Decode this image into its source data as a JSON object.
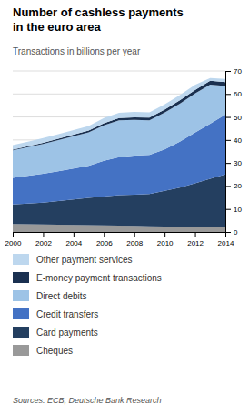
{
  "chart_data": {
    "type": "area",
    "stacked": true,
    "title": "Number of cashless payments\nin the euro area",
    "subtitle": "Transactions in billions per year",
    "source": "Sources: ECB, Deutsche Bank Research",
    "x": [
      2000,
      2001,
      2002,
      2003,
      2004,
      2005,
      2006,
      2007,
      2008,
      2009,
      2010,
      2011,
      2012,
      2013,
      2014
    ],
    "series": [
      {
        "name": "Cheques",
        "color": "#999999",
        "values": [
          3.5,
          3.4,
          3.3,
          3.2,
          3.1,
          3.0,
          2.9,
          2.8,
          2.7,
          2.5,
          2.4,
          2.3,
          2.2,
          2.1,
          2.0
        ]
      },
      {
        "name": "Card payments",
        "color": "#243f60",
        "values": [
          8.5,
          9.0,
          9.5,
          10.2,
          11.0,
          11.8,
          12.5,
          13.2,
          13.5,
          14.0,
          15.5,
          17.0,
          19.0,
          21.0,
          23.0
        ]
      },
      {
        "name": "Credit transfers",
        "color": "#4472c4",
        "values": [
          11.5,
          12.0,
          12.5,
          13.0,
          13.5,
          14.0,
          15.5,
          16.5,
          17.0,
          17.0,
          18.0,
          20.0,
          22.0,
          24.0,
          26.0
        ]
      },
      {
        "name": "Direct debits",
        "color": "#9dc3e6",
        "values": [
          12.0,
          12.5,
          13.0,
          13.5,
          14.0,
          14.5,
          15.5,
          16.0,
          15.5,
          15.0,
          16.0,
          16.5,
          17.0,
          17.0,
          12.5
        ]
      },
      {
        "name": "E-money payment transactions",
        "color": "#1a3050",
        "values": [
          0.3,
          0.4,
          0.5,
          0.6,
          0.7,
          0.8,
          0.9,
          1.0,
          1.1,
          1.2,
          1.3,
          1.4,
          1.5,
          1.6,
          1.7
        ]
      },
      {
        "name": "Other payment services",
        "color": "#bdd7ee",
        "values": [
          2.0,
          2.0,
          2.0,
          2.0,
          2.0,
          2.0,
          2.2,
          2.3,
          2.4,
          2.3,
          2.3,
          2.3,
          2.3,
          1.2,
          1.3
        ]
      }
    ],
    "xlim": [
      2000,
      2014
    ],
    "xticks": [
      2000,
      2002,
      2004,
      2006,
      2008,
      2010,
      2012,
      2014
    ],
    "ylim": [
      0,
      70
    ],
    "yticks": [
      0,
      10,
      20,
      30,
      40,
      50,
      60,
      70
    ],
    "grid": true,
    "legend": "bottom"
  }
}
